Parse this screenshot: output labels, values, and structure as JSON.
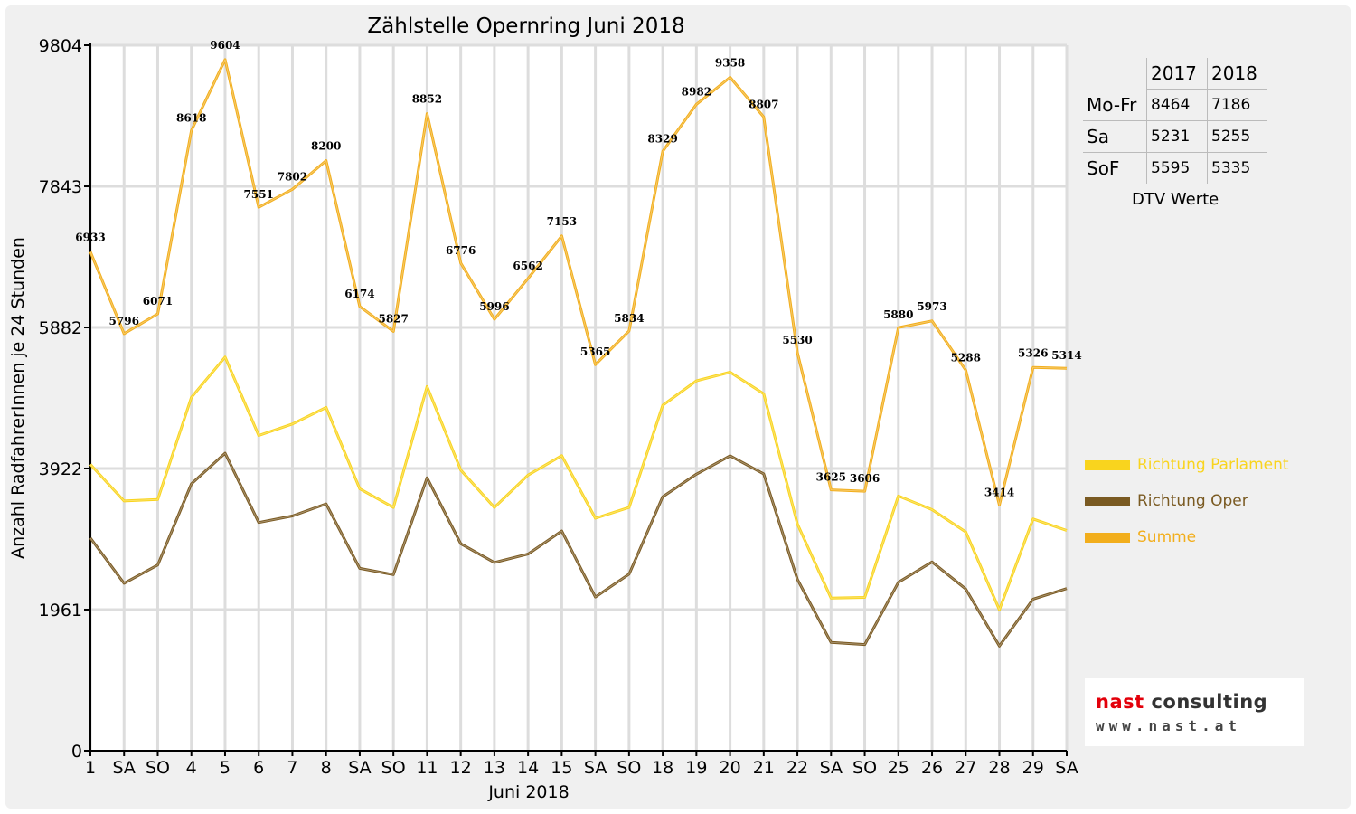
{
  "colors": {
    "parlament": "#f9d41e",
    "oper": "#7a5a22",
    "summe": "#f2ae1c",
    "sunday_label": "#e3000b",
    "grid": "#dddddd",
    "plot_bg": "#ffffff",
    "frame_bg": "#f0f0f0"
  },
  "chart_data": {
    "type": "line",
    "title": "Zählstelle Opernring Juni 2018",
    "xlabel": "Juni 2018",
    "ylabel": "Anzahl RadfahrerInnen je 24 Stunden",
    "ylim": [
      0,
      9804
    ],
    "y_ticks": [
      0,
      1961,
      3922,
      5882,
      7843,
      9804
    ],
    "grid": true,
    "legend_position": "right",
    "categories": [
      "1",
      "SA",
      "SO",
      "4",
      "5",
      "6",
      "7",
      "8",
      "SA",
      "SO",
      "11",
      "12",
      "13",
      "14",
      "15",
      "SA",
      "SO",
      "18",
      "19",
      "20",
      "21",
      "22",
      "SA",
      "SO",
      "25",
      "26",
      "27",
      "28",
      "29",
      "SA"
    ],
    "sunday_indices": [
      2,
      9,
      16,
      23
    ],
    "series": [
      {
        "name": "Richtung Parlament",
        "color_key": "parlament",
        "values": [
          3978,
          3470,
          3490,
          4910,
          5470,
          4380,
          4540,
          4770,
          3640,
          3380,
          5060,
          3900,
          3380,
          3830,
          4100,
          3230,
          3380,
          4800,
          5140,
          5260,
          4960,
          3150,
          2120,
          2130,
          3540,
          3350,
          3040,
          1960,
          3220,
          3060
        ]
      },
      {
        "name": "Richtung Oper",
        "color_key": "oper",
        "values": [
          2955,
          2326,
          2581,
          3708,
          4134,
          3171,
          3262,
          3430,
          2534,
          2447,
          3792,
          2876,
          2616,
          2732,
          3053,
          2135,
          2454,
          3529,
          3842,
          4098,
          3847,
          2380,
          1505,
          1476,
          2340,
          2623,
          2248,
          1454,
          2106,
          2254
        ]
      },
      {
        "name": "Summe",
        "color_key": "summe",
        "values": [
          6933,
          5796,
          6071,
          8618,
          9604,
          7551,
          7802,
          8200,
          6174,
          5827,
          8852,
          6776,
          5996,
          6562,
          7153,
          5365,
          5834,
          8329,
          8982,
          9358,
          8807,
          5530,
          3625,
          3606,
          5880,
          5973,
          5288,
          3414,
          5326,
          5314
        ],
        "data_labels": [
          "6933",
          "5796",
          "6071",
          "8618",
          "9604",
          "7551",
          "7802",
          "8200",
          "6174",
          "5827",
          "8852",
          "6776",
          "5996",
          "6562",
          "7153",
          "5365",
          "5834",
          "8329",
          "8982",
          "9358",
          "8807",
          "5530",
          "3625",
          "3606",
          "5880",
          "5973",
          "5288",
          "3414",
          "5326",
          "5314"
        ]
      }
    ]
  },
  "dtv_table": {
    "headers": [
      "2017",
      "2018"
    ],
    "rows": [
      {
        "label": "Mo-Fr",
        "v2017": "8464",
        "v2018": "7186"
      },
      {
        "label": "Sa",
        "v2017": "5231",
        "v2018": "5255"
      },
      {
        "label": "SoF",
        "v2017": "5595",
        "v2018": "5335"
      }
    ],
    "caption": "DTV Werte"
  },
  "legend": {
    "items": [
      {
        "label": "Richtung Parlament",
        "color_key": "parlament"
      },
      {
        "label": "Richtung Oper",
        "color_key": "oper"
      },
      {
        "label": "Summe",
        "color_key": "summe"
      }
    ]
  },
  "logo": {
    "name_part1": "nast",
    "name_part2": " consulting",
    "url": "www.nast.at"
  }
}
